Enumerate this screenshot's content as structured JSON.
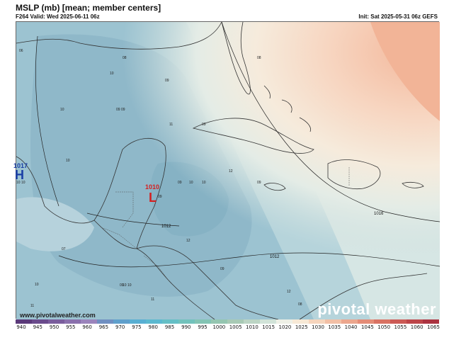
{
  "header": {
    "title": "MSLP (mb) [mean; member centers]",
    "valid": "F264 Valid: Wed 2025-06-11 06z",
    "init": "Init: Sat 2025-05-31 06z GEFS"
  },
  "footer": {
    "website": "www.pivotalweather.com",
    "brand": "pivotal weather"
  },
  "map": {
    "isobar_labels": [
      "1016",
      "1012",
      "1012"
    ],
    "low_center": {
      "symbol": "L",
      "value": "1010"
    },
    "high_center": {
      "symbol": "H",
      "value": "1017"
    },
    "member_centers": [
      "08",
      "10",
      "09",
      "10",
      "11",
      "09",
      "08",
      "10",
      "12",
      "07",
      "12",
      "11",
      "09",
      "10",
      "10",
      "09",
      "06",
      "09",
      "08",
      "09",
      "09",
      "10",
      "12",
      "11",
      "10 10",
      "09 09",
      "10 10"
    ]
  },
  "colorbar": {
    "ticks": [
      "940",
      "945",
      "950",
      "955",
      "960",
      "965",
      "970",
      "975",
      "980",
      "985",
      "990",
      "995",
      "1000",
      "1005",
      "1010",
      "1015",
      "1020",
      "1025",
      "1030",
      "1035",
      "1040",
      "1045",
      "1050",
      "1055",
      "1060",
      "1065"
    ],
    "colors": [
      "#5b3a7a",
      "#6a4b8c",
      "#7a5d9d",
      "#8a70ad",
      "#9b84bc",
      "#6f8fc1",
      "#5fa0cc",
      "#58afd3",
      "#5bb9d0",
      "#65bfc6",
      "#72c2bc",
      "#83c4b4",
      "#95c6b1",
      "#a8cab5",
      "#bcd5c4",
      "#d1e3d8",
      "#eef0e6",
      "#f7e9d6",
      "#f6d5bd",
      "#f2bfa5",
      "#eca68d",
      "#e48c77",
      "#d97263",
      "#cc5a55",
      "#bd4549",
      "#ab3340"
    ],
    "accent_low": "#d42020"
  }
}
